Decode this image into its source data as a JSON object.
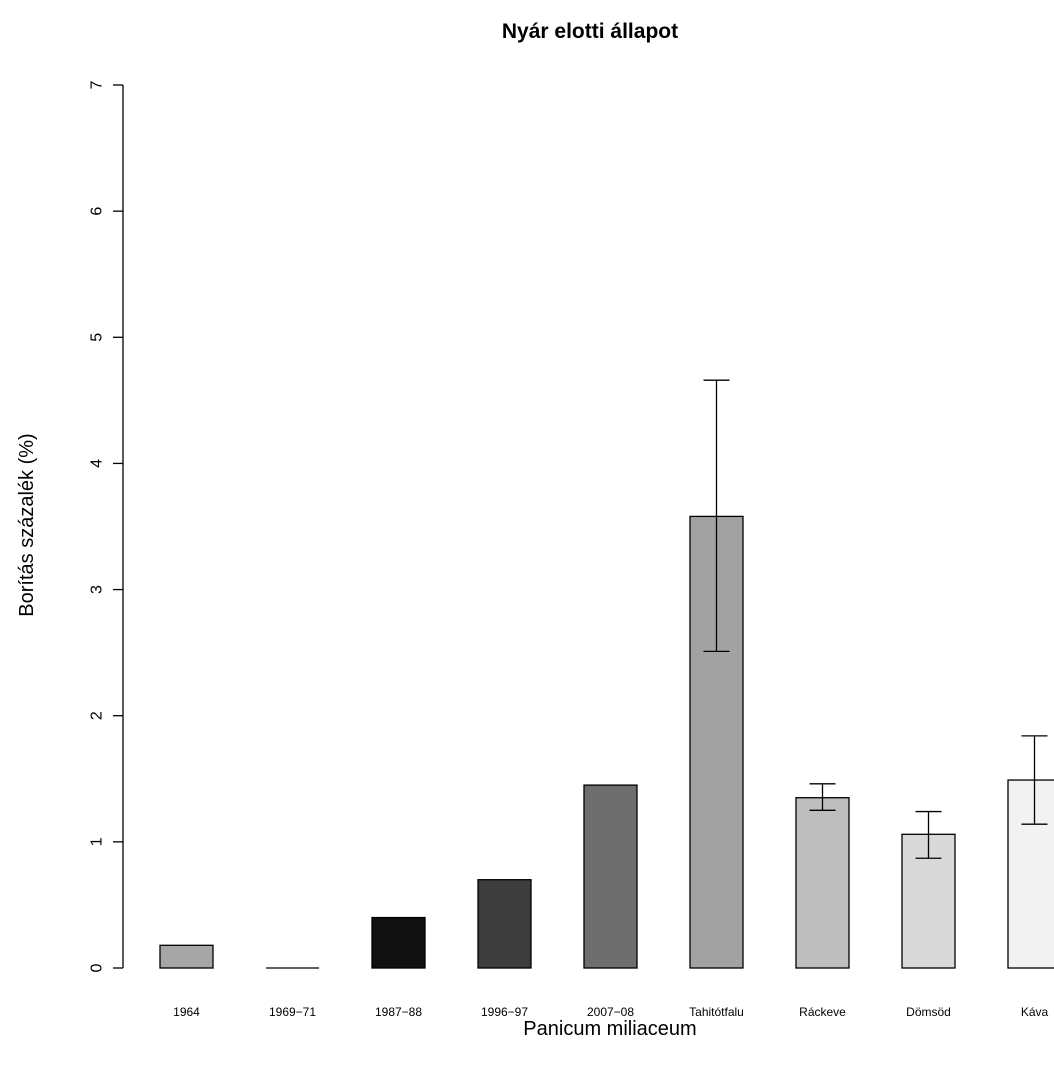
{
  "chart_data": {
    "type": "bar",
    "title": "Nyár elotti állapot",
    "xlabel": "Panicum miliaceum",
    "ylabel": "Borítás százalék (%)",
    "ylim": [
      0,
      7
    ],
    "yticks": [
      "0",
      "1",
      "2",
      "3",
      "4",
      "5",
      "6",
      "7"
    ],
    "grid": false,
    "categories": [
      "1964",
      "1969−71",
      "1987−88",
      "1996−97",
      "2007−08",
      "Tahitótfalu",
      "Ráckeve",
      "Dömsöd",
      "Káva"
    ],
    "values": [
      0.18,
      0.0,
      0.4,
      0.7,
      1.45,
      3.58,
      1.35,
      1.06,
      1.49
    ],
    "error_low": [
      null,
      null,
      null,
      null,
      null,
      2.51,
      1.25,
      0.87,
      1.14
    ],
    "error_high": [
      null,
      null,
      null,
      null,
      null,
      4.66,
      1.46,
      1.24,
      1.84
    ],
    "colors": [
      "#a6a6a6",
      "#ffffff",
      "#111111",
      "#3d3d3d",
      "#6e6e6e",
      "#a2a2a2",
      "#bebebe",
      "#d9d9d9",
      "#f2f2f2"
    ]
  }
}
